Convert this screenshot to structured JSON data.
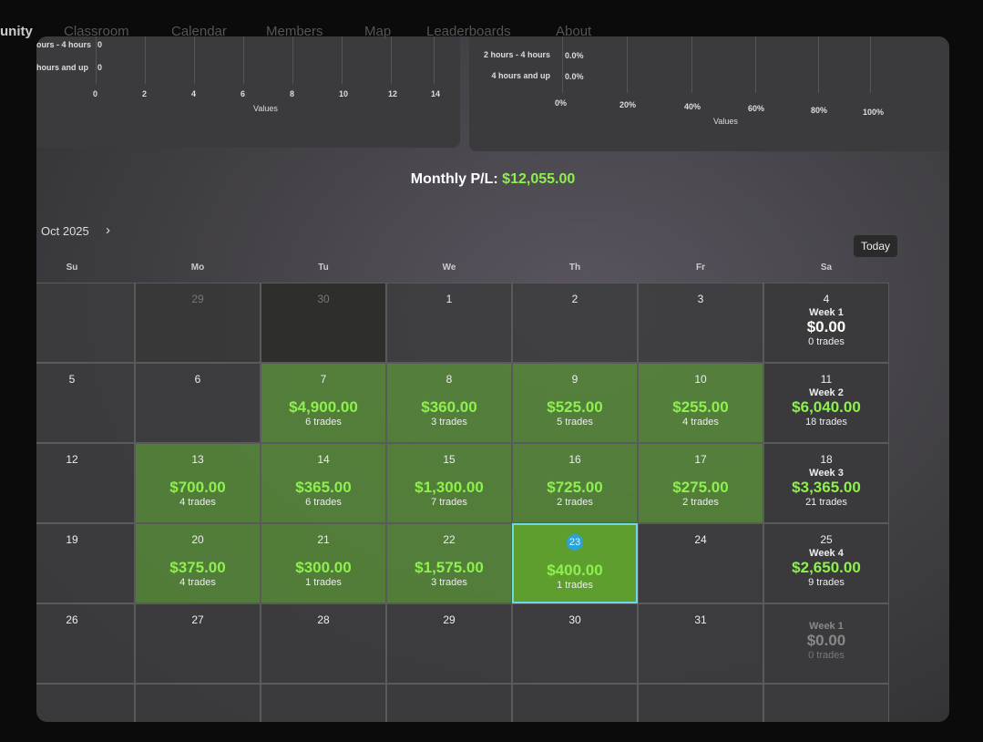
{
  "nav": {
    "tabs": [
      "unity",
      "Classroom",
      "Calendar",
      "Members",
      "Map",
      "Leaderboards",
      "About"
    ]
  },
  "left_chart": {
    "rows": [
      {
        "label": "ours - 4 hours",
        "value": "0"
      },
      {
        "label": "hours and up",
        "value": "0"
      }
    ],
    "ticks": [
      "0",
      "2",
      "4",
      "6",
      "8",
      "10",
      "12",
      "14"
    ],
    "axis_label": "Values"
  },
  "right_chart": {
    "rows": [
      {
        "label": "2 hours - 4 hours",
        "value": "0.0%"
      },
      {
        "label": "4 hours and up",
        "value": "0.0%"
      }
    ],
    "ticks": [
      "0%",
      "20%",
      "40%",
      "60%",
      "80%",
      "100%"
    ],
    "axis_label": "Values"
  },
  "calendar": {
    "title_label": "Monthly P/L:",
    "title_value": "$12,055.00",
    "month": "Oct 2025",
    "today_button": "Today",
    "weekdays": [
      "Su",
      "Mo",
      "Tu",
      "We",
      "Th",
      "Fr",
      "Sa"
    ],
    "weeks": [
      [
        null,
        {
          "day": "29"
        },
        {
          "day": "30"
        },
        {
          "day": "1"
        },
        {
          "day": "2"
        },
        {
          "day": "3"
        },
        {
          "day": "4",
          "week": "Week 1",
          "pl": "$0.00",
          "trades": "0 trades"
        }
      ],
      [
        {
          "day": "5"
        },
        {
          "day": "6"
        },
        {
          "day": "7",
          "pl": "$4,900.00",
          "trades": "6 trades"
        },
        {
          "day": "8",
          "pl": "$360.00",
          "trades": "3 trades"
        },
        {
          "day": "9",
          "pl": "$525.00",
          "trades": "5 trades"
        },
        {
          "day": "10",
          "pl": "$255.00",
          "trades": "4 trades"
        },
        {
          "day": "11",
          "week": "Week 2",
          "pl": "$6,040.00",
          "trades": "18 trades"
        }
      ],
      [
        {
          "day": "12"
        },
        {
          "day": "13",
          "pl": "$700.00",
          "trades": "4 trades"
        },
        {
          "day": "14",
          "pl": "$365.00",
          "trades": "6 trades"
        },
        {
          "day": "15",
          "pl": "$1,300.00",
          "trades": "7 trades"
        },
        {
          "day": "16",
          "pl": "$725.00",
          "trades": "2 trades"
        },
        {
          "day": "17",
          "pl": "$275.00",
          "trades": "2 trades"
        },
        {
          "day": "18",
          "week": "Week 3",
          "pl": "$3,365.00",
          "trades": "21 trades"
        }
      ],
      [
        {
          "day": "19"
        },
        {
          "day": "20",
          "pl": "$375.00",
          "trades": "4 trades"
        },
        {
          "day": "21",
          "pl": "$300.00",
          "trades": "1 trades"
        },
        {
          "day": "22",
          "pl": "$1,575.00",
          "trades": "3 trades"
        },
        {
          "day": "23",
          "pl": "$400.00",
          "trades": "1 trades",
          "today": true
        },
        {
          "day": "24"
        },
        {
          "day": "25",
          "week": "Week 4",
          "pl": "$2,650.00",
          "trades": "9 trades"
        }
      ],
      [
        {
          "day": "26"
        },
        {
          "day": "27"
        },
        {
          "day": "28"
        },
        {
          "day": "29"
        },
        {
          "day": "30"
        },
        {
          "day": "31"
        },
        {
          "week": "Week 1",
          "pl": "$0.00",
          "trades": "0 trades"
        }
      ]
    ]
  }
}
